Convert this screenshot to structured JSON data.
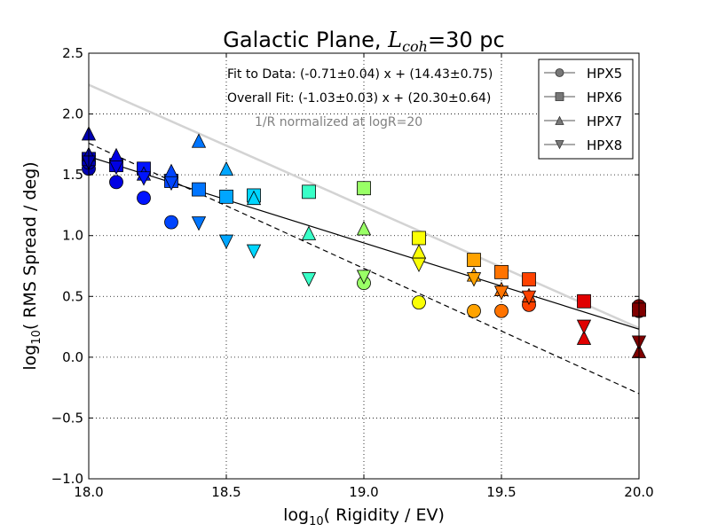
{
  "chart_data": {
    "type": "scatter",
    "title_main": "Galactic Plane, ",
    "title_sym": "L",
    "title_sub": "coh",
    "title_rest": "=30 pc",
    "xlabel_pre": "log",
    "xlabel_sub": "10",
    "xlabel_post": "( Rigidity / EV)",
    "ylabel_pre": "log",
    "ylabel_sub": "10",
    "ylabel_post": "( RMS Spread / deg)",
    "xlim": [
      18.0,
      20.0
    ],
    "ylim": [
      -1.0,
      2.5
    ],
    "xticks": [
      "18.0",
      "18.5",
      "19.0",
      "19.5",
      "20.0"
    ],
    "xtick_values": [
      18.0,
      18.5,
      19.0,
      19.5,
      20.0
    ],
    "yticks": [
      "−1.0",
      "−0.5",
      "0.0",
      "0.5",
      "1.0",
      "1.5",
      "2.0",
      "2.5"
    ],
    "ytick_values": [
      -1.0,
      -0.5,
      0.0,
      0.5,
      1.0,
      1.5,
      2.0,
      2.5
    ],
    "grid": true,
    "legend_position": "top-right",
    "annotations": {
      "fit_data": "Fit to Data: (-0.71±0.04) x + (14.43±0.75)",
      "overall_fit": "Overall Fit: (-1.03±0.03) x + (20.30±0.64)",
      "normalization": "1/R normalized at logR=20"
    },
    "lines": [
      {
        "role": "fit-to-data",
        "slope": -0.71,
        "intercept": 14.43,
        "style": "solid",
        "color": "#000000"
      },
      {
        "role": "overall-fit",
        "slope": -1.03,
        "intercept": 20.3,
        "style": "dashed",
        "color": "#000000"
      },
      {
        "role": "1/R normalized",
        "x": [
          18.0,
          20.0
        ],
        "y": [
          2.24,
          0.24
        ],
        "style": "solid",
        "color": "#d3d3d3"
      }
    ],
    "series": [
      {
        "name": "HPX5",
        "marker": "circle",
        "points": [
          [
            18.0,
            1.55
          ],
          [
            18.0,
            1.6
          ],
          [
            18.1,
            1.44
          ],
          [
            18.2,
            1.31
          ],
          [
            18.3,
            1.11
          ],
          [
            19.0,
            0.61
          ],
          [
            19.2,
            0.45
          ],
          [
            19.4,
            0.38
          ],
          [
            19.5,
            0.38
          ],
          [
            19.6,
            0.43
          ],
          [
            20.0,
            0.38
          ],
          [
            20.0,
            0.42
          ]
        ]
      },
      {
        "name": "HPX6",
        "marker": "square",
        "points": [
          [
            18.0,
            1.63
          ],
          [
            18.1,
            1.58
          ],
          [
            18.2,
            1.55
          ],
          [
            18.3,
            1.45
          ],
          [
            18.4,
            1.38
          ],
          [
            18.5,
            1.32
          ],
          [
            18.6,
            1.33
          ],
          [
            18.8,
            1.36
          ],
          [
            19.0,
            1.39
          ],
          [
            19.2,
            0.98
          ],
          [
            19.4,
            0.8
          ],
          [
            19.5,
            0.7
          ],
          [
            19.6,
            0.64
          ],
          [
            19.8,
            0.46
          ],
          [
            20.0,
            0.39
          ]
        ]
      },
      {
        "name": "HPX7",
        "marker": "triangle-up",
        "points": [
          [
            18.0,
            1.84
          ],
          [
            18.0,
            1.67
          ],
          [
            18.1,
            1.66
          ],
          [
            18.2,
            1.51
          ],
          [
            18.3,
            1.53
          ],
          [
            18.4,
            1.78
          ],
          [
            18.5,
            1.55
          ],
          [
            18.6,
            1.31
          ],
          [
            18.8,
            1.02
          ],
          [
            19.0,
            1.06
          ],
          [
            19.2,
            0.87
          ],
          [
            19.4,
            0.68
          ],
          [
            19.5,
            0.56
          ],
          [
            19.6,
            0.51
          ],
          [
            19.8,
            0.16
          ],
          [
            20.0,
            0.05
          ]
        ]
      },
      {
        "name": "HPX8",
        "marker": "triangle-down",
        "points": [
          [
            18.0,
            1.6
          ],
          [
            18.1,
            1.56
          ],
          [
            18.2,
            1.47
          ],
          [
            18.3,
            1.43
          ],
          [
            18.4,
            1.1
          ],
          [
            18.5,
            0.95
          ],
          [
            18.6,
            0.87
          ],
          [
            18.8,
            0.64
          ],
          [
            19.0,
            0.66
          ],
          [
            19.2,
            0.76
          ],
          [
            19.4,
            0.64
          ],
          [
            19.5,
            0.53
          ],
          [
            19.6,
            0.49
          ],
          [
            19.8,
            0.25
          ],
          [
            20.0,
            0.12
          ]
        ]
      }
    ]
  }
}
